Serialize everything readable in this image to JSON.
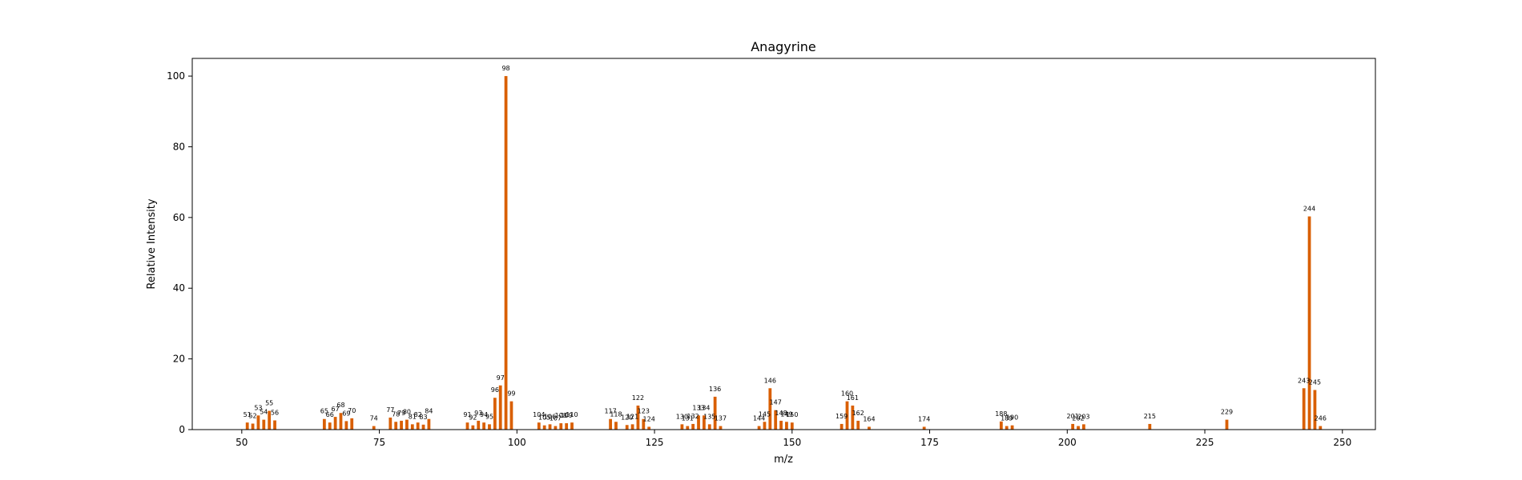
{
  "chart_data": {
    "type": "bar",
    "title": "Anagyrine",
    "xlabel": "m/z",
    "ylabel": "Relative Intensity",
    "xlim": [
      41,
      256
    ],
    "ylim": [
      0,
      105
    ],
    "xticks": [
      50,
      75,
      100,
      125,
      150,
      175,
      200,
      225,
      250
    ],
    "yticks": [
      0,
      20,
      40,
      60,
      80,
      100
    ],
    "bar_color": "#d95f02",
    "grid": false,
    "bars": [
      {
        "x": 51,
        "y": 2.0
      },
      {
        "x": 52,
        "y": 1.7
      },
      {
        "x": 53,
        "y": 4.0
      },
      {
        "x": 54,
        "y": 2.8
      },
      {
        "x": 55,
        "y": 5.3
      },
      {
        "x": 56,
        "y": 2.6
      },
      {
        "x": 65,
        "y": 3.0
      },
      {
        "x": 66,
        "y": 2.0
      },
      {
        "x": 67,
        "y": 3.6
      },
      {
        "x": 68,
        "y": 4.7
      },
      {
        "x": 69,
        "y": 2.4
      },
      {
        "x": 70,
        "y": 3.2
      },
      {
        "x": 74,
        "y": 1.0
      },
      {
        "x": 77,
        "y": 3.4
      },
      {
        "x": 78,
        "y": 2.2
      },
      {
        "x": 79,
        "y": 2.5
      },
      {
        "x": 80,
        "y": 2.8
      },
      {
        "x": 81,
        "y": 1.5
      },
      {
        "x": 82,
        "y": 2.0
      },
      {
        "x": 83,
        "y": 1.4
      },
      {
        "x": 84,
        "y": 3.0
      },
      {
        "x": 91,
        "y": 2.0
      },
      {
        "x": 92,
        "y": 1.2
      },
      {
        "x": 93,
        "y": 2.5
      },
      {
        "x": 94,
        "y": 2.0
      },
      {
        "x": 95,
        "y": 1.5
      },
      {
        "x": 96,
        "y": 9.0
      },
      {
        "x": 97,
        "y": 12.5
      },
      {
        "x": 98,
        "y": 100
      },
      {
        "x": 99,
        "y": 8.0
      },
      {
        "x": 104,
        "y": 2.0
      },
      {
        "x": 105,
        "y": 1.2
      },
      {
        "x": 106,
        "y": 1.5
      },
      {
        "x": 107,
        "y": 1.0
      },
      {
        "x": 108,
        "y": 1.8
      },
      {
        "x": 109,
        "y": 1.8
      },
      {
        "x": 110,
        "y": 2.0
      },
      {
        "x": 117,
        "y": 3.0
      },
      {
        "x": 118,
        "y": 2.2
      },
      {
        "x": 120,
        "y": 1.3
      },
      {
        "x": 121,
        "y": 1.5
      },
      {
        "x": 122,
        "y": 6.8
      },
      {
        "x": 123,
        "y": 3.0
      },
      {
        "x": 124,
        "y": 0.8
      },
      {
        "x": 130,
        "y": 1.5
      },
      {
        "x": 131,
        "y": 1.0
      },
      {
        "x": 132,
        "y": 1.6
      },
      {
        "x": 133,
        "y": 4.0
      },
      {
        "x": 134,
        "y": 4.0
      },
      {
        "x": 135,
        "y": 1.5
      },
      {
        "x": 136,
        "y": 9.3
      },
      {
        "x": 137,
        "y": 1.0
      },
      {
        "x": 144,
        "y": 1.0
      },
      {
        "x": 145,
        "y": 2.2
      },
      {
        "x": 146,
        "y": 11.7
      },
      {
        "x": 147,
        "y": 5.5
      },
      {
        "x": 148,
        "y": 2.5
      },
      {
        "x": 149,
        "y": 2.2
      },
      {
        "x": 150,
        "y": 2.0
      },
      {
        "x": 159,
        "y": 1.6
      },
      {
        "x": 160,
        "y": 8.0
      },
      {
        "x": 161,
        "y": 6.8
      },
      {
        "x": 162,
        "y": 2.5
      },
      {
        "x": 164,
        "y": 0.8
      },
      {
        "x": 174,
        "y": 0.8
      },
      {
        "x": 188,
        "y": 2.3
      },
      {
        "x": 189,
        "y": 1.0
      },
      {
        "x": 190,
        "y": 1.2
      },
      {
        "x": 201,
        "y": 1.6
      },
      {
        "x": 202,
        "y": 1.0
      },
      {
        "x": 203,
        "y": 1.5
      },
      {
        "x": 215,
        "y": 1.6
      },
      {
        "x": 229,
        "y": 2.8
      },
      {
        "x": 243,
        "y": 11.7
      },
      {
        "x": 244,
        "y": 60.3
      },
      {
        "x": 245,
        "y": 11.2
      },
      {
        "x": 246,
        "y": 1.0
      }
    ]
  }
}
